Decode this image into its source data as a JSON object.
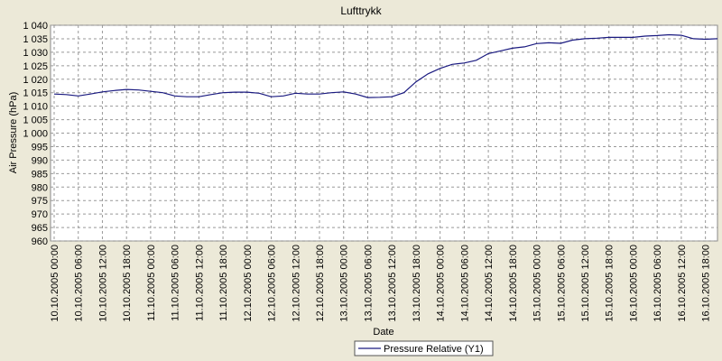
{
  "chart_data": {
    "type": "line",
    "title": "Lufttrykk",
    "x_label": "Date",
    "y_label": "Air Pressure (hPa)",
    "x": [
      "10.10.2005 00:00",
      "10.10.2005 03:00",
      "10.10.2005 06:00",
      "10.10.2005 09:00",
      "10.10.2005 12:00",
      "10.10.2005 15:00",
      "10.10.2005 18:00",
      "10.10.2005 21:00",
      "11.10.2005 00:00",
      "11.10.2005 03:00",
      "11.10.2005 06:00",
      "11.10.2005 09:00",
      "11.10.2005 12:00",
      "11.10.2005 15:00",
      "11.10.2005 18:00",
      "11.10.2005 21:00",
      "12.10.2005 00:00",
      "12.10.2005 03:00",
      "12.10.2005 06:00",
      "12.10.2005 09:00",
      "12.10.2005 12:00",
      "12.10.2005 15:00",
      "12.10.2005 18:00",
      "12.10.2005 21:00",
      "13.10.2005 00:00",
      "13.10.2005 03:00",
      "13.10.2005 06:00",
      "13.10.2005 09:00",
      "13.10.2005 12:00",
      "13.10.2005 15:00",
      "13.10.2005 18:00",
      "13.10.2005 21:00",
      "14.10.2005 00:00",
      "14.10.2005 03:00",
      "14.10.2005 06:00",
      "14.10.2005 09:00",
      "14.10.2005 12:00",
      "14.10.2005 15:00",
      "14.10.2005 18:00",
      "14.10.2005 21:00",
      "15.10.2005 00:00",
      "15.10.2005 03:00",
      "15.10.2005 06:00",
      "15.10.2005 09:00",
      "15.10.2005 12:00",
      "15.10.2005 15:00",
      "15.10.2005 18:00",
      "15.10.2005 21:00",
      "16.10.2005 00:00",
      "16.10.2005 03:00",
      "16.10.2005 06:00",
      "16.10.2005 09:00",
      "16.10.2005 12:00",
      "16.10.2005 15:00",
      "16.10.2005 18:00",
      "16.10.2005 21:00"
    ],
    "series": [
      {
        "name": "Pressure Relative (Y1)",
        "color": "#1a1a80",
        "values": [
          1014.5,
          1014.3,
          1013.8,
          1014.5,
          1015.3,
          1015.8,
          1016.2,
          1016.0,
          1015.5,
          1015.0,
          1013.8,
          1013.5,
          1013.5,
          1014.3,
          1015.0,
          1015.2,
          1015.2,
          1014.8,
          1013.5,
          1013.8,
          1014.8,
          1014.5,
          1014.5,
          1015.0,
          1015.3,
          1014.5,
          1013.2,
          1013.3,
          1013.5,
          1015.0,
          1019.0,
          1022.0,
          1024.0,
          1025.5,
          1026.0,
          1027.0,
          1029.5,
          1030.5,
          1031.5,
          1032.0,
          1033.2,
          1033.5,
          1033.3,
          1034.5,
          1035.0,
          1035.2,
          1035.5,
          1035.5,
          1035.5,
          1036.0,
          1036.2,
          1036.5,
          1036.3,
          1035.0,
          1034.8,
          1035.0
        ]
      }
    ],
    "xlim": [
      "10.10.2005 00:00",
      "16.10.2005 21:00"
    ],
    "xticks": [
      "10.10.2005 00:00",
      "10.10.2005 06:00",
      "10.10.2005 12:00",
      "10.10.2005 18:00",
      "11.10.2005 00:00",
      "11.10.2005 06:00",
      "11.10.2005 12:00",
      "11.10.2005 18:00",
      "12.10.2005 00:00",
      "12.10.2005 06:00",
      "12.10.2005 12:00",
      "12.10.2005 18:00",
      "13.10.2005 00:00",
      "13.10.2005 06:00",
      "13.10.2005 12:00",
      "13.10.2005 18:00",
      "14.10.2005 00:00",
      "14.10.2005 06:00",
      "14.10.2005 12:00",
      "14.10.2005 18:00",
      "15.10.2005 00:00",
      "15.10.2005 06:00",
      "15.10.2005 12:00",
      "15.10.2005 18:00",
      "16.10.2005 00:00",
      "16.10.2005 06:00",
      "16.10.2005 12:00",
      "16.10.2005 18:00"
    ],
    "ylim": [
      960,
      1040
    ],
    "yticks": [
      {
        "value": 1040,
        "label": "1 040"
      },
      {
        "value": 1035,
        "label": "1 035"
      },
      {
        "value": 1030,
        "label": "1 030"
      },
      {
        "value": 1025,
        "label": "1 025"
      },
      {
        "value": 1020,
        "label": "1 020"
      },
      {
        "value": 1015,
        "label": "1 015"
      },
      {
        "value": 1010,
        "label": "1 010"
      },
      {
        "value": 1005,
        "label": "1 005"
      },
      {
        "value": 1000,
        "label": "1 000"
      },
      995,
      990,
      985,
      980,
      975,
      970,
      965,
      960
    ],
    "grid": true,
    "legend": "bottom"
  }
}
